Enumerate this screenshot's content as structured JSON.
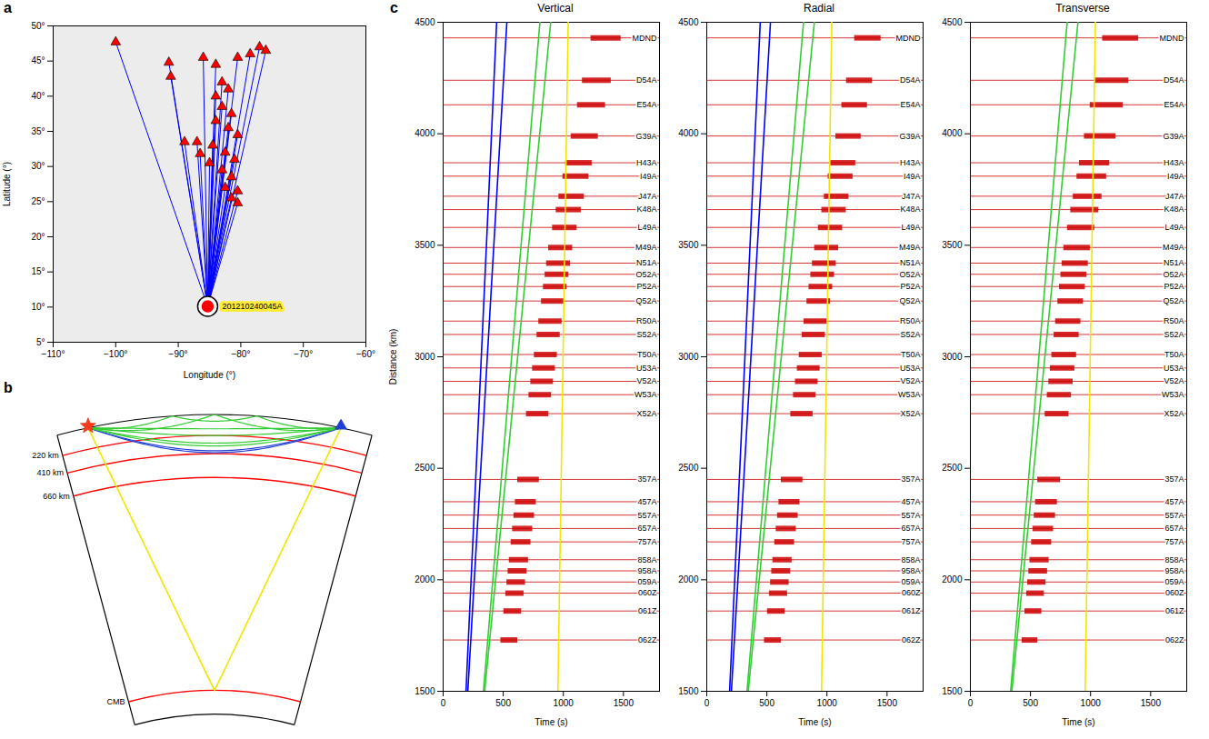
{
  "chart_data": [
    {
      "type": "map",
      "letter": "a",
      "xlabel": "Longitude (°)",
      "ylabel": "Latitude (°)",
      "xlim": [
        -110,
        -60
      ],
      "ylim": [
        5,
        50
      ],
      "xticks": [
        {
          "value": -110,
          "label": "−110°"
        },
        {
          "value": -100,
          "label": "−100°"
        },
        {
          "value": -90,
          "label": "−90°"
        },
        {
          "value": -80,
          "label": "−80°"
        },
        {
          "value": -70,
          "label": "−70°"
        },
        {
          "value": -60,
          "label": "−60°"
        }
      ],
      "yticks": [
        {
          "value": 5,
          "label": "5°"
        },
        {
          "value": 10,
          "label": "10°"
        },
        {
          "value": 15,
          "label": "15°"
        },
        {
          "value": 20,
          "label": "20°"
        },
        {
          "value": 25,
          "label": "25°"
        },
        {
          "value": 30,
          "label": "30°"
        },
        {
          "value": 35,
          "label": "35°"
        },
        {
          "value": 40,
          "label": "40°"
        },
        {
          "value": 45,
          "label": "45°"
        },
        {
          "value": 50,
          "label": "50°"
        }
      ],
      "event": {
        "name": "201210240045A",
        "lon": -85.3,
        "lat": 10.1,
        "color": "red"
      },
      "stations": {
        "lon": [
          -100,
          -91.5,
          -91.2,
          -86,
          -84,
          -80.5,
          -77,
          -76,
          -78.5,
          -83,
          -82,
          -84,
          -83,
          -81.5,
          -84,
          -82,
          -80.5,
          -87,
          -84.5,
          -82.5,
          -81,
          -85,
          -83,
          -81.5,
          -82.5,
          -80.5,
          -81.5,
          -80.5,
          -89,
          -86.5
        ],
        "lat": [
          47.7,
          44.8,
          42.8,
          45.5,
          44.5,
          45.5,
          47,
          46.5,
          46,
          42,
          41,
          40,
          38.5,
          37.5,
          36.5,
          35.5,
          34.5,
          33.5,
          33,
          32,
          31,
          30.5,
          29.5,
          28.5,
          27,
          26.5,
          25.5,
          24.8,
          33.5,
          31.8
        ],
        "color": "red"
      },
      "color": "blue"
    },
    {
      "type": "record_section",
      "letter": "c",
      "xlabel": "Time (s)",
      "ylabel": "Distance (km)",
      "xlim": [
        0,
        1800
      ],
      "xticks": [
        0,
        500,
        1000,
        1500
      ],
      "ylim": [
        1500,
        4500
      ],
      "yticks": [
        1500,
        2000,
        2500,
        3000,
        3500,
        4000,
        4500
      ],
      "color": "#cc0000",
      "stations": {
        "names": [
          "062Z",
          "061Z",
          "060Z",
          "059A",
          "958A",
          "858A",
          "757A",
          "657A",
          "557A",
          "457A",
          "357A",
          "X52A",
          "W53A",
          "V52A",
          "U53A",
          "T50A",
          "S52A",
          "R50A",
          "Q52A",
          "P52A",
          "O52A",
          "N51A",
          "M49A",
          "L49A",
          "K48A",
          "J47A",
          "I49A",
          "H43A",
          "G39A",
          "E54A",
          "D54A",
          "MDND"
        ],
        "distance": [
          1730,
          1860,
          1940,
          1990,
          2040,
          2090,
          2170,
          2230,
          2290,
          2350,
          2450,
          2745,
          2830,
          2890,
          2950,
          3010,
          3100,
          3160,
          3250,
          3315,
          3370,
          3420,
          3490,
          3580,
          3660,
          3720,
          3810,
          3870,
          3990,
          4130,
          4240,
          4430
        ]
      },
      "panels": [
        {
          "title": "Vertical",
          "surface_waves": {
            "distance": [
              1730,
              2450,
              3500,
              4430
            ],
            "start": [
              480,
              620,
              880,
              1230
            ],
            "end": [
              620,
              800,
              1080,
              1480
            ]
          },
          "phases": [
            {
              "color": "blue",
              "distance": [
                1500,
                4500
              ],
              "time": [
                190,
                445
              ]
            },
            {
              "color": "blue",
              "distance": [
                1500,
                4500
              ],
              "time": [
                205,
                530
              ]
            },
            {
              "color": "#33cc33",
              "distance": [
                1500,
                4500
              ],
              "time": [
                335,
                805
              ]
            },
            {
              "color": "#33cc33",
              "distance": [
                1500,
                4500
              ],
              "time": [
                345,
                895
              ]
            },
            {
              "color": "#f2e600",
              "distance": [
                1500,
                4500
              ],
              "time": [
                955,
                1040
              ]
            }
          ]
        },
        {
          "title": "Radial",
          "surface_waves": {
            "distance": [
              1730,
              2450,
              3500,
              4430
            ],
            "start": [
              480,
              620,
              900,
              1230
            ],
            "end": [
              620,
              800,
              1100,
              1450
            ]
          },
          "phases": [
            {
              "color": "blue",
              "distance": [
                1500,
                4500
              ],
              "time": [
                190,
                445
              ]
            },
            {
              "color": "blue",
              "distance": [
                1500,
                4500
              ],
              "time": [
                205,
                530
              ]
            },
            {
              "color": "#33cc33",
              "distance": [
                1500,
                4500
              ],
              "time": [
                335,
                805
              ]
            },
            {
              "color": "#33cc33",
              "distance": [
                1500,
                4500
              ],
              "time": [
                345,
                895
              ]
            },
            {
              "color": "#f2e600",
              "distance": [
                1500,
                4500
              ],
              "time": [
                955,
                1040
              ]
            }
          ]
        },
        {
          "title": "Transverse",
          "surface_waves": {
            "distance": [
              1730,
              2450,
              3500,
              4430
            ],
            "start": [
              430,
              560,
              780,
              1100
            ],
            "end": [
              560,
              750,
              1000,
              1400
            ]
          },
          "phases": [
            {
              "color": "#33cc33",
              "distance": [
                1500,
                4500
              ],
              "time": [
                335,
                805
              ]
            },
            {
              "color": "#33cc33",
              "distance": [
                1500,
                4500
              ],
              "time": [
                345,
                895
              ]
            },
            {
              "color": "#f2e600",
              "distance": [
                1500,
                4500
              ],
              "time": [
                955,
                1040
              ]
            }
          ]
        }
      ]
    }
  ],
  "diagram": {
    "letter": "b",
    "earth_radius": 6371,
    "layers": [
      {
        "depth": 220,
        "label": "220 km"
      },
      {
        "depth": 410,
        "label": "410 km"
      },
      {
        "depth": 660,
        "label": "660 km"
      },
      {
        "depth": 2891,
        "label": "CMB"
      }
    ],
    "layer_color": "red"
  }
}
